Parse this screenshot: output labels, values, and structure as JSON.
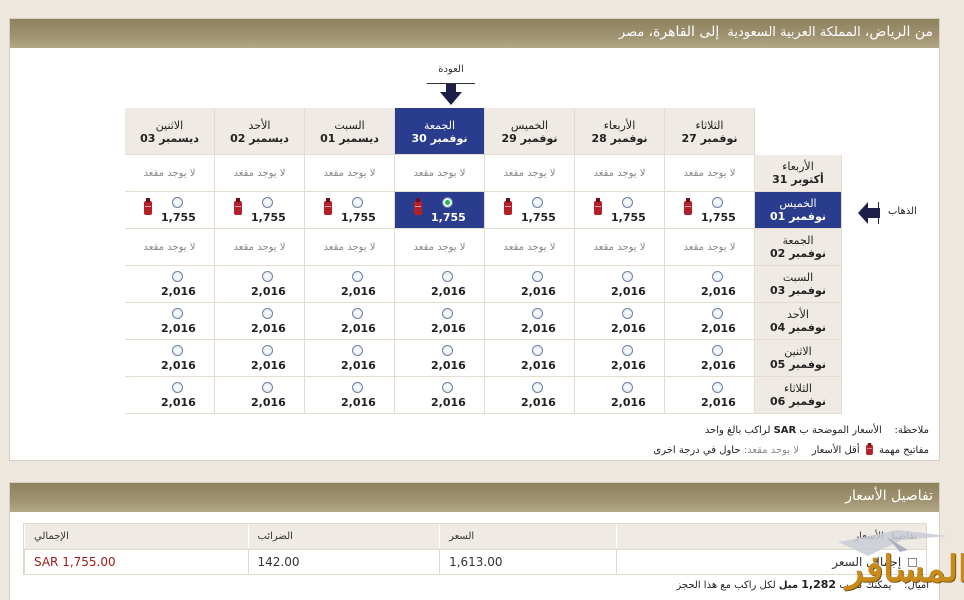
{
  "header": {
    "from": "من الرياض،",
    "from_country": "المملكة العربية السعودية",
    "to": "إلى القاهرة،",
    "to_country": "مصر"
  },
  "return_label": "العودة",
  "outbound_label": "الذهاب",
  "columns": [
    {
      "day": "الثلاثاء",
      "date": "27 نوفمبر"
    },
    {
      "day": "الأربعاء",
      "date": "28 نوفمبر"
    },
    {
      "day": "الخميس",
      "date": "29 نوفمبر"
    },
    {
      "day": "الجمعة",
      "date": "30 نوفمبر"
    },
    {
      "day": "السبت",
      "date": "01 ديسمبر"
    },
    {
      "day": "الأحد",
      "date": "02 ديسمبر"
    },
    {
      "day": "الاثنين",
      "date": "03 ديسمبر"
    }
  ],
  "active_column": 3,
  "rows": [
    {
      "day": "الأربعاء",
      "date": "31 أكتوبر",
      "type": "none"
    },
    {
      "day": "الخميس",
      "date": "01 نوفمبر",
      "type": "fare",
      "price": "1,755",
      "lowest": true
    },
    {
      "day": "الجمعة",
      "date": "02 نوفمبر",
      "type": "none"
    },
    {
      "day": "السبت",
      "date": "03 نوفمبر",
      "type": "fare",
      "price": "2,016",
      "lowest": false
    },
    {
      "day": "الأحد",
      "date": "04 نوفمبر",
      "type": "fare",
      "price": "2,016",
      "lowest": false
    },
    {
      "day": "الاثنين",
      "date": "05 نوفمبر",
      "type": "fare",
      "price": "2,016",
      "lowest": false
    },
    {
      "day": "الثلاثاء",
      "date": "06 نوفمبر",
      "type": "fare",
      "price": "2,016",
      "lowest": false
    }
  ],
  "active_row": 1,
  "no_seat_text": "لا يوجد مقعد",
  "note": {
    "label": "ملاحظة:",
    "text1": "الأسعار الموضحة ب",
    "currency": "SAR",
    "text2": "لراكب بالغ واحد"
  },
  "legend": {
    "label": "مفاتيح مهمة",
    "lowest": "أقل الأسعار",
    "no_seat": "لا يوجد مقعد:",
    "try_other": "حاول في درجة اخرى"
  },
  "fares": {
    "title": "تفاصيل الأسعار",
    "headers": {
      "total": "الإجمالي",
      "taxes": "الضرائب",
      "price": "السعر",
      "details": "تفاصيل الأسعار"
    },
    "row": {
      "total": "SAR 1,755.00",
      "taxes": "142.00",
      "price": "1,613.00",
      "details": "إجمالي السعر"
    },
    "miles_label": "أميال:",
    "miles_text1": "يمكنك كسب",
    "miles_value": "1,282",
    "miles_unit": "ميل",
    "miles_text2": "لكل راكب مع هذا الحجز"
  },
  "watermark": "المسافر",
  "colors": {
    "header": "#9d9170",
    "active": "#2a3c8e",
    "total": "#9b1b14",
    "lowfare": "#b3202a"
  }
}
